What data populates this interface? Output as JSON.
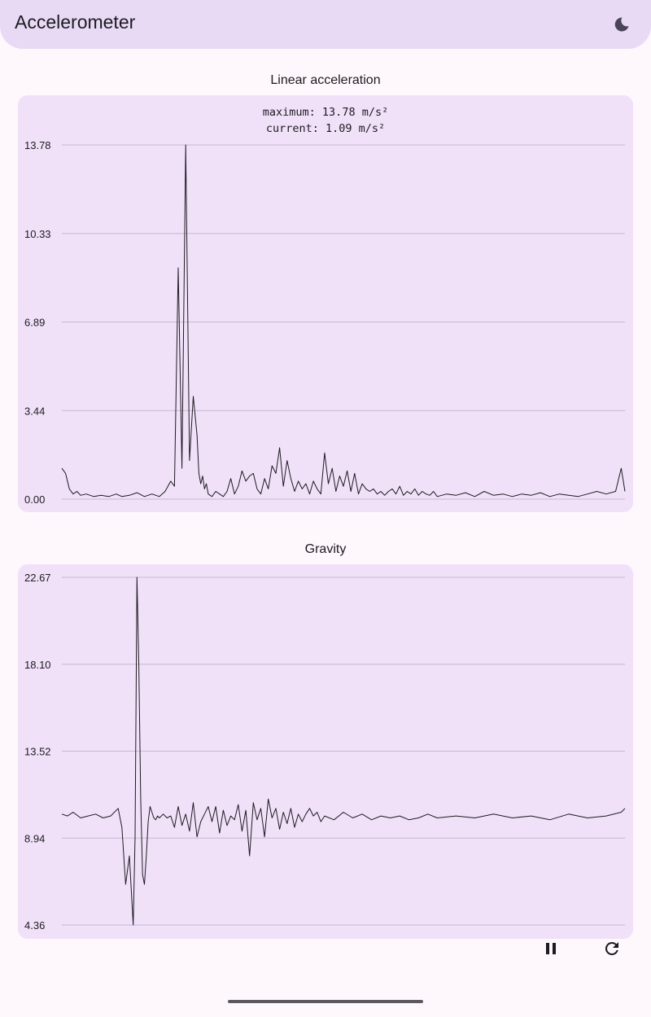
{
  "app": {
    "title": "Accelerometer",
    "theme_icon": "moon-icon"
  },
  "linear": {
    "title": "Linear acceleration",
    "maximum_text": "maximum: 13.78 m/s²",
    "current_text": "current: 1.09 m/s²"
  },
  "gravity": {
    "title": "Gravity"
  },
  "controls": {
    "pause_icon": "pause-icon",
    "reset_icon": "refresh-icon"
  },
  "colors": {
    "card": "#f0e1f9",
    "appbar": "#e8daf5",
    "grid": "#c7b6d3",
    "line": "#1d1b20"
  },
  "chart_data": [
    {
      "type": "line",
      "title": "Linear acceleration",
      "ylim": [
        0,
        13.78
      ],
      "yticks": [
        "0.00",
        "3.44",
        "6.89",
        "10.33",
        "13.78"
      ],
      "grid": true,
      "series": [
        {
          "x": [
            0,
            2,
            4,
            6,
            8,
            10,
            13,
            17,
            21,
            25,
            29,
            32,
            36,
            40,
            44,
            48,
            52,
            55,
            58,
            60,
            62,
            64,
            66,
            68,
            70,
            72,
            73,
            74,
            75,
            76,
            77,
            78,
            80,
            82,
            84,
            86,
            88,
            90,
            92,
            94,
            96,
            98,
            100,
            102,
            104,
            106,
            108,
            110,
            112,
            114,
            116,
            118,
            120,
            122,
            124,
            126,
            128,
            130,
            132,
            134,
            136,
            138,
            140,
            142,
            144,
            146,
            148,
            150,
            152,
            154,
            156,
            158,
            160,
            162,
            164,
            166,
            168,
            170,
            172,
            174,
            176,
            178,
            180,
            182,
            184,
            186,
            188,
            190,
            192,
            194,
            196,
            198,
            200,
            205,
            210,
            215,
            220,
            225,
            230,
            235,
            240,
            245,
            250,
            255,
            260,
            265,
            270,
            275,
            280,
            285,
            290,
            295,
            298,
            300
          ],
          "y": [
            1.2,
            1.0,
            0.4,
            0.2,
            0.3,
            0.15,
            0.2,
            0.1,
            0.15,
            0.1,
            0.2,
            0.1,
            0.15,
            0.25,
            0.1,
            0.2,
            0.1,
            0.3,
            0.7,
            0.5,
            9.0,
            1.2,
            13.78,
            1.5,
            4.0,
            2.5,
            1.0,
            0.6,
            0.9,
            0.4,
            0.6,
            0.2,
            0.1,
            0.3,
            0.2,
            0.1,
            0.3,
            0.8,
            0.2,
            0.5,
            1.1,
            0.7,
            0.9,
            1.0,
            0.4,
            0.2,
            0.8,
            0.4,
            1.3,
            1.0,
            2.0,
            0.5,
            1.5,
            0.8,
            0.3,
            0.7,
            0.4,
            0.6,
            0.2,
            0.7,
            0.4,
            0.2,
            1.8,
            0.6,
            1.2,
            0.3,
            0.9,
            0.5,
            1.1,
            0.3,
            1.0,
            0.2,
            0.6,
            0.4,
            0.3,
            0.4,
            0.2,
            0.3,
            0.15,
            0.3,
            0.4,
            0.2,
            0.5,
            0.15,
            0.3,
            0.2,
            0.4,
            0.15,
            0.3,
            0.2,
            0.15,
            0.3,
            0.1,
            0.2,
            0.15,
            0.25,
            0.1,
            0.3,
            0.15,
            0.2,
            0.1,
            0.2,
            0.15,
            0.25,
            0.1,
            0.2,
            0.15,
            0.1,
            0.2,
            0.3,
            0.2,
            0.3,
            1.2,
            0.3
          ]
        }
      ]
    },
    {
      "type": "line",
      "title": "Gravity",
      "ylim": [
        4.36,
        22.67
      ],
      "yticks": [
        "4.36",
        "8.94",
        "13.52",
        "18.10",
        "22.67"
      ],
      "grid": true,
      "series": [
        {
          "x": [
            0,
            3,
            6,
            10,
            14,
            18,
            22,
            26,
            30,
            32,
            34,
            36,
            38,
            39,
            40,
            41,
            42,
            43,
            44,
            45,
            46,
            47,
            48,
            49,
            50,
            51,
            52,
            54,
            56,
            58,
            60,
            62,
            64,
            66,
            68,
            70,
            72,
            74,
            76,
            78,
            80,
            82,
            84,
            86,
            88,
            90,
            92,
            94,
            96,
            98,
            100,
            102,
            104,
            106,
            108,
            110,
            112,
            114,
            116,
            118,
            120,
            122,
            124,
            126,
            128,
            130,
            132,
            134,
            136,
            138,
            140,
            145,
            150,
            155,
            160,
            165,
            170,
            175,
            180,
            185,
            190,
            195,
            200,
            210,
            220,
            230,
            240,
            250,
            260,
            270,
            280,
            290,
            298,
            300
          ],
          "y": [
            10.2,
            10.1,
            10.3,
            10.0,
            10.1,
            10.2,
            10.0,
            10.1,
            10.5,
            9.5,
            6.5,
            8.0,
            4.36,
            9.0,
            22.67,
            18.0,
            11.0,
            7.0,
            6.5,
            8.0,
            9.8,
            10.6,
            10.3,
            10.0,
            9.9,
            10.1,
            10.0,
            10.2,
            10.0,
            10.1,
            9.5,
            10.6,
            9.6,
            10.2,
            9.3,
            10.8,
            9.0,
            9.8,
            10.2,
            10.6,
            9.8,
            10.6,
            9.2,
            10.4,
            9.6,
            10.1,
            9.9,
            10.7,
            9.3,
            10.4,
            8.0,
            10.8,
            9.9,
            10.5,
            9.0,
            11.0,
            10.0,
            10.5,
            9.4,
            10.3,
            9.7,
            10.5,
            9.5,
            10.2,
            9.8,
            10.2,
            10.5,
            10.1,
            10.3,
            9.8,
            10.1,
            9.9,
            10.3,
            10.0,
            10.2,
            9.9,
            10.1,
            10.0,
            10.1,
            9.9,
            10.0,
            10.2,
            10.0,
            10.1,
            10.0,
            10.2,
            10.0,
            10.1,
            9.9,
            10.2,
            10.0,
            10.1,
            10.3,
            10.5
          ]
        }
      ]
    }
  ]
}
